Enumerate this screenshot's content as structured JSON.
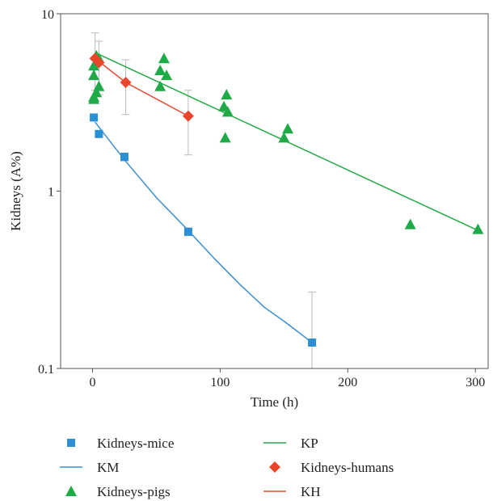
{
  "chart_data": {
    "type": "scatter",
    "title": "",
    "xlabel": "Time (h)",
    "ylabel": "Kidneys (A%)",
    "xlim": [
      -25,
      310
    ],
    "ylim": [
      0.1,
      10
    ],
    "yscale": "log",
    "x_ticks": [
      0,
      100,
      200,
      300
    ],
    "y_ticks": [
      0.1,
      1,
      10
    ],
    "y_tick_labels": [
      "0.1",
      "1",
      "10"
    ],
    "grid": false,
    "legend_position": "bottom",
    "legend": [
      {
        "label": "Kidneys-mice",
        "kind": "marker",
        "shape": "square",
        "color": "#2a8fd4"
      },
      {
        "label": "KP",
        "kind": "line",
        "color": "#22a844"
      },
      {
        "label": "KM",
        "kind": "line",
        "color": "#3b8fd0"
      },
      {
        "label": "Kidneys-humans",
        "kind": "marker",
        "shape": "diamond",
        "color": "#e8452b"
      },
      {
        "label": "Kidneys-pigs",
        "kind": "marker",
        "shape": "triangle",
        "color": "#1faa47"
      },
      {
        "label": "KH",
        "kind": "line",
        "color": "#e04a2f"
      }
    ],
    "series": [
      {
        "name": "Kidneys-mice",
        "kind": "scatter",
        "shape": "square",
        "color": "#2a8fd4",
        "points": [
          [
            1,
            2.6
          ],
          [
            5,
            2.1
          ],
          [
            25,
            1.56
          ],
          [
            75,
            0.59
          ],
          [
            172,
            0.14
          ]
        ],
        "error_bars": [
          {
            "x": 25,
            "low": 1.48,
            "high": 1.64
          },
          {
            "x": 75,
            "low": 0.56,
            "high": 0.62
          },
          {
            "x": 172,
            "low": 0.1,
            "high": 0.27
          }
        ]
      },
      {
        "name": "KM",
        "kind": "line",
        "color": "#3b8fd0",
        "points": [
          [
            2,
            2.45
          ],
          [
            25,
            1.5
          ],
          [
            50,
            0.92
          ],
          [
            75,
            0.6
          ],
          [
            95,
            0.42
          ],
          [
            115,
            0.3
          ],
          [
            135,
            0.22
          ],
          [
            150,
            0.185
          ],
          [
            172,
            0.14
          ]
        ]
      },
      {
        "name": "Kidneys-pigs",
        "kind": "scatter",
        "shape": "triangle",
        "color": "#1faa47",
        "points": [
          [
            1,
            3.3
          ],
          [
            1,
            3.4
          ],
          [
            1,
            4.5
          ],
          [
            1,
            5.1
          ],
          [
            3,
            3.6
          ],
          [
            3,
            5.8
          ],
          [
            5,
            3.9
          ],
          [
            5,
            5.6
          ],
          [
            53,
            3.9
          ],
          [
            53,
            4.8
          ],
          [
            56,
            5.6
          ],
          [
            58,
            4.5
          ],
          [
            103,
            3.0
          ],
          [
            104,
            2.0
          ],
          [
            105,
            3.5
          ],
          [
            106,
            2.8
          ],
          [
            150,
            2.0
          ],
          [
            153,
            2.25
          ],
          [
            249,
            0.65
          ],
          [
            302,
            0.61
          ]
        ]
      },
      {
        "name": "KP",
        "kind": "line",
        "color": "#22a844",
        "points": [
          [
            5,
            5.9
          ],
          [
            302,
            0.6
          ]
        ]
      },
      {
        "name": "Kidneys-humans",
        "kind": "scatter",
        "shape": "diamond",
        "color": "#e8452b",
        "points": [
          [
            2,
            5.6
          ],
          [
            5,
            5.3
          ],
          [
            26,
            4.1
          ],
          [
            75,
            2.65
          ]
        ],
        "error_bars": [
          {
            "x": 2,
            "low": 3.7,
            "high": 7.8
          },
          {
            "x": 5,
            "low": 3.5,
            "high": 7.0
          },
          {
            "x": 26,
            "low": 2.7,
            "high": 5.5
          },
          {
            "x": 75,
            "low": 1.6,
            "high": 3.7
          }
        ]
      },
      {
        "name": "KH",
        "kind": "line",
        "color": "#e04a2f",
        "points": [
          [
            2,
            5.6
          ],
          [
            26,
            4.1
          ],
          [
            75,
            2.65
          ]
        ]
      }
    ]
  }
}
